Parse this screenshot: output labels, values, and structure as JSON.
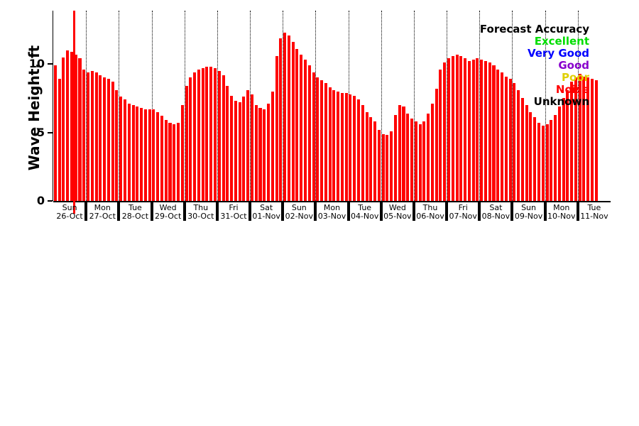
{
  "chart_data": {
    "type": "bar",
    "title": "",
    "xlabel": "",
    "ylabel": "Wave Height, ft",
    "ylim": [
      0,
      13.9
    ],
    "yticks": [
      0,
      5,
      10
    ],
    "bar_color": "#ff0000",
    "grid": "dotted-vertical-day-boundaries",
    "now_marker": {
      "day_offset": 0.6,
      "color": "#ff0000"
    },
    "legend": {
      "title": "Forecast Accuracy",
      "position": "top-right",
      "entries": [
        {
          "label": "Excellent",
          "color": "#00dd00"
        },
        {
          "label": "Very Good",
          "color": "#0000ff"
        },
        {
          "label": "Good",
          "color": "#8800cc"
        },
        {
          "label": "Poor",
          "color": "#e0d000"
        },
        {
          "label": "Noise",
          "color": "#ff0000"
        },
        {
          "label": "Unknown",
          "color": "#000000"
        }
      ]
    },
    "days": [
      {
        "name": "Sun",
        "date": "26-Oct",
        "values": [
          9.9,
          8.9,
          10.5,
          11.0,
          10.9,
          10.7,
          10.4,
          9.6
        ]
      },
      {
        "name": "Mon",
        "date": "27-Oct",
        "values": [
          9.4,
          9.5,
          9.4,
          9.2,
          9.0,
          8.9,
          8.7,
          8.1
        ]
      },
      {
        "name": "Tue",
        "date": "28-Oct",
        "values": [
          7.6,
          7.4,
          7.1,
          7.0,
          6.9,
          6.8,
          6.7,
          6.7
        ]
      },
      {
        "name": "Wed",
        "date": "29-Oct",
        "values": [
          6.7,
          6.5,
          6.2,
          5.9,
          5.7,
          5.6,
          5.7,
          7.0
        ]
      },
      {
        "name": "Thu",
        "date": "30-Oct",
        "values": [
          8.4,
          9.0,
          9.4,
          9.6,
          9.7,
          9.8,
          9.8,
          9.7
        ]
      },
      {
        "name": "Fri",
        "date": "31-Oct",
        "values": [
          9.5,
          9.2,
          8.4,
          7.7,
          7.3,
          7.2,
          7.6,
          8.1
        ]
      },
      {
        "name": "Sat",
        "date": "01-Nov",
        "values": [
          7.8,
          7.0,
          6.8,
          6.7,
          7.1,
          8.0,
          10.6,
          11.9
        ]
      },
      {
        "name": "Sun",
        "date": "02-Nov",
        "values": [
          12.3,
          12.1,
          11.6,
          11.1,
          10.7,
          10.3,
          9.9,
          9.4
        ]
      },
      {
        "name": "Mon",
        "date": "03-Nov",
        "values": [
          9.0,
          8.8,
          8.6,
          8.3,
          8.1,
          8.0,
          7.9,
          7.9
        ]
      },
      {
        "name": "Tue",
        "date": "04-Nov",
        "values": [
          7.8,
          7.7,
          7.4,
          7.0,
          6.5,
          6.1,
          5.8,
          5.2
        ]
      },
      {
        "name": "Wed",
        "date": "05-Nov",
        "values": [
          4.9,
          4.8,
          5.1,
          6.3,
          7.0,
          6.9,
          6.4,
          6.0
        ]
      },
      {
        "name": "Thu",
        "date": "06-Nov",
        "values": [
          5.8,
          5.6,
          5.8,
          6.4,
          7.1,
          8.2,
          9.6,
          10.1
        ]
      },
      {
        "name": "Fri",
        "date": "07-Nov",
        "values": [
          10.4,
          10.6,
          10.7,
          10.6,
          10.4,
          10.2,
          10.3,
          10.4
        ]
      },
      {
        "name": "Sat",
        "date": "08-Nov",
        "values": [
          10.3,
          10.2,
          10.1,
          9.9,
          9.6,
          9.4,
          9.1,
          8.9
        ]
      },
      {
        "name": "Sun",
        "date": "09-Nov",
        "values": [
          8.6,
          8.1,
          7.5,
          7.0,
          6.5,
          6.1,
          5.7,
          5.5
        ]
      },
      {
        "name": "Mon",
        "date": "10-Nov",
        "values": [
          5.6,
          5.9,
          6.3,
          6.9,
          7.5,
          8.1,
          8.7,
          9.0
        ]
      },
      {
        "name": "Tue",
        "date": "11-Nov",
        "values": [
          9.3,
          9.1,
          9.0,
          8.9,
          8.8
        ]
      }
    ]
  }
}
